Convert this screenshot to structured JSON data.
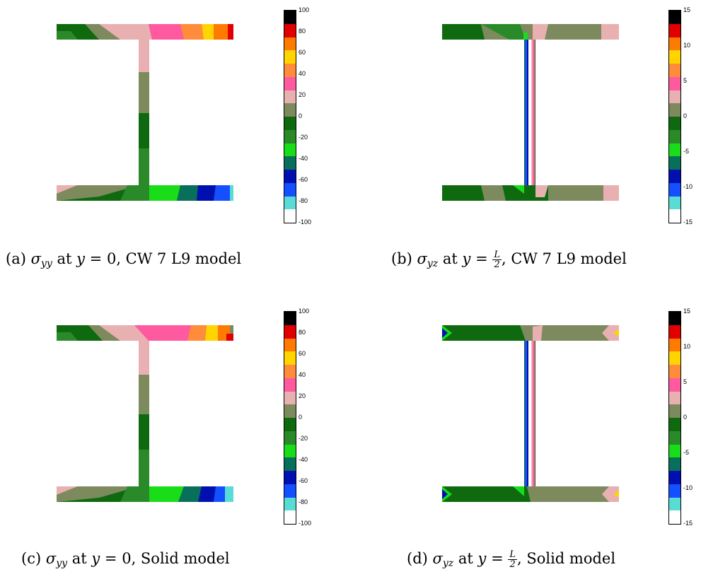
{
  "colors": {
    "black": "#000000",
    "red": "#e00000",
    "orange": "#ff7a00",
    "gold": "#ffd400",
    "salmon": "#ff8c3a",
    "pink": "#ff5aa0",
    "lightpink": "#e8b0b0",
    "olive": "#7d8a5e",
    "darkgreen": "#0f6a0f",
    "green": "#2a8a2a",
    "lime": "#18dd18",
    "teal": "#08705a",
    "navy": "#0010b0",
    "blue": "#1450ff",
    "cyan": "#5adcd6",
    "white": "#ffffff"
  },
  "colorbar_order": [
    "black",
    "red",
    "orange",
    "gold",
    "salmon",
    "pink",
    "lightpink",
    "olive",
    "darkgreen",
    "green",
    "lime",
    "teal",
    "navy",
    "blue",
    "cyan",
    "white"
  ],
  "panels": [
    {
      "id": "a",
      "label": "(a)",
      "sym": "σ",
      "sub": "yy",
      "at": "at",
      "cond_var": "y",
      "cond_val": "0",
      "model": ", CW 7 L9 model",
      "ticks": [
        "100",
        "80",
        "60",
        "40",
        "20",
        "0",
        "-20",
        "-40",
        "-60",
        "-80",
        "-100"
      ]
    },
    {
      "id": "b",
      "label": "(b)",
      "sym": "σ",
      "sub": "yz",
      "at": "at",
      "cond_var": "y",
      "frac_num": "L",
      "frac_den": "2",
      "model": ", CW 7 L9 model",
      "ticks": [
        "15",
        "10",
        "5",
        "0",
        "-5",
        "-10",
        "-15"
      ]
    },
    {
      "id": "c",
      "label": "(c)",
      "sym": "σ",
      "sub": "yy",
      "at": "at",
      "cond_var": "y",
      "cond_val": "0",
      "model": ", Solid model",
      "ticks": [
        "100",
        "80",
        "60",
        "40",
        "20",
        "0",
        "-20",
        "-40",
        "-60",
        "-80",
        "-100"
      ]
    },
    {
      "id": "d",
      "label": "(d)",
      "sym": "σ",
      "sub": "yz",
      "at": "at",
      "cond_var": "y",
      "frac_num": "L",
      "frac_den": "2",
      "model": ", Solid model",
      "ticks": [
        "15",
        "10",
        "5",
        "0",
        "-5",
        "-10",
        "-15"
      ]
    }
  ]
}
